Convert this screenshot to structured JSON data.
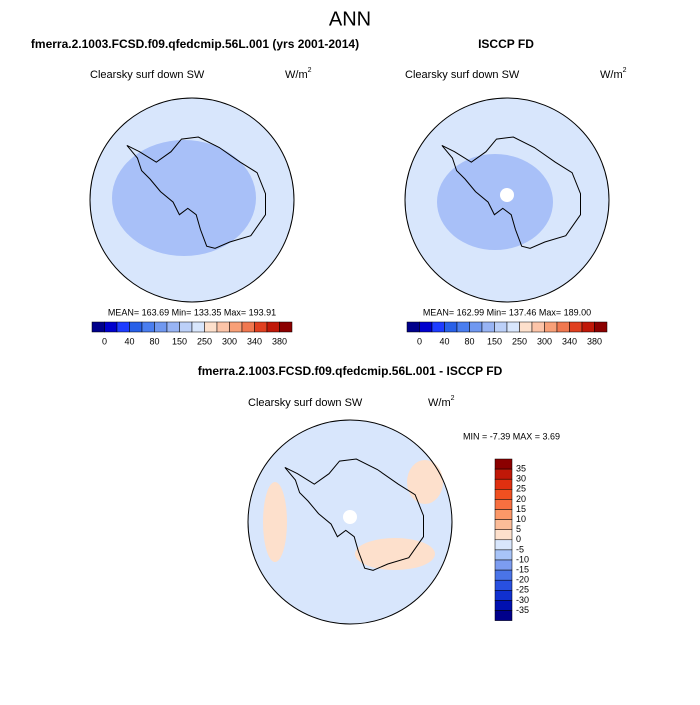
{
  "title": "ANN",
  "panels": [
    {
      "title": "fmerra.2.1003.FCSD.f09.qfedcmip.56L.001 (yrs 2001-2014)",
      "variable": "Clearsky surf down SW",
      "units": {
        "base": "W/m",
        "superscript": "2"
      },
      "stats": "MEAN= 163.69  Min= 133.35  Max= 193.91"
    },
    {
      "title": "ISCCP FD",
      "variable": "Clearsky surf down SW",
      "units": {
        "base": "W/m",
        "superscript": "2"
      },
      "stats": "MEAN= 162.99  Min= 137.46  Max= 189.00"
    }
  ],
  "colorbar": {
    "labels": [
      0,
      40,
      80,
      150,
      250,
      300,
      340,
      380
    ],
    "colors": [
      "#00008b",
      "#0000cd",
      "#1e3cff",
      "#2860e8",
      "#4a7ef0",
      "#7098f0",
      "#98b4f4",
      "#bcd0f8",
      "#d8e6fc",
      "#fde0cc",
      "#fcc4a8",
      "#f8a078",
      "#f07850",
      "#e04020",
      "#c01808",
      "#8b0000"
    ]
  },
  "difference": {
    "title": "fmerra.2.1003.FCSD.f09.qfedcmip.56L.001 - ISCCP FD",
    "variable": "Clearsky surf down SW",
    "units": {
      "base": "W/m",
      "superscript": "2"
    },
    "stats": "MIN = -7.39 MAX =  3.69",
    "colorbar": {
      "labels": [
        35,
        30,
        25,
        20,
        15,
        10,
        5,
        0,
        -5,
        -10,
        -15,
        -20,
        -25,
        -30,
        -35
      ],
      "colors": [
        "#8b0000",
        "#c01808",
        "#e03010",
        "#f05020",
        "#f87040",
        "#fc9868",
        "#fcbc98",
        "#fde0cc",
        "#d8e6fc",
        "#a8c4f8",
        "#7c9cf0",
        "#4a74e8",
        "#2850e0",
        "#1030d0",
        "#0010b0",
        "#00008b"
      ]
    }
  }
}
